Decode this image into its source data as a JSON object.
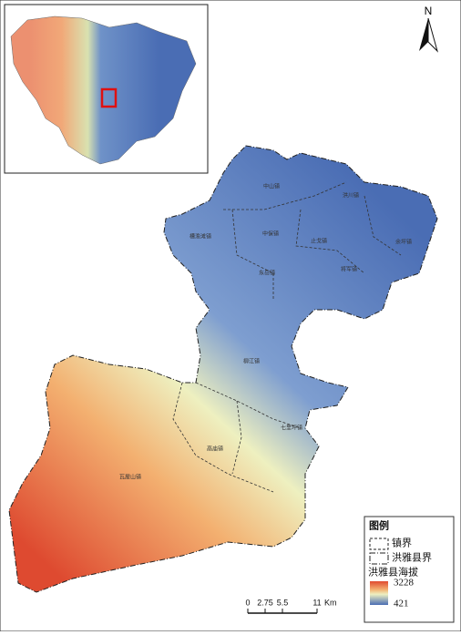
{
  "map": {
    "north_label": "N",
    "towns": [
      {
        "label": "中山镇"
      },
      {
        "label": "洪川镇"
      },
      {
        "label": "槽渔滩镇"
      },
      {
        "label": "中保镇"
      },
      {
        "label": "止戈镇"
      },
      {
        "label": "余坪镇"
      },
      {
        "label": "东岳镇"
      },
      {
        "label": "将军镇"
      },
      {
        "label": "柳江镇"
      },
      {
        "label": "七里坪镇"
      },
      {
        "label": "高庙镇"
      },
      {
        "label": "瓦屋山镇"
      }
    ],
    "legend": {
      "title": "图例",
      "items": [
        {
          "label": "镇界"
        },
        {
          "label": "洪雅县界"
        }
      ],
      "ramp": {
        "title": "洪雅县海拔",
        "max": 3228,
        "min": 421
      }
    },
    "scale_bar": {
      "ticks": [
        0,
        2.75,
        5.5,
        11
      ],
      "unit": "Km"
    }
  }
}
